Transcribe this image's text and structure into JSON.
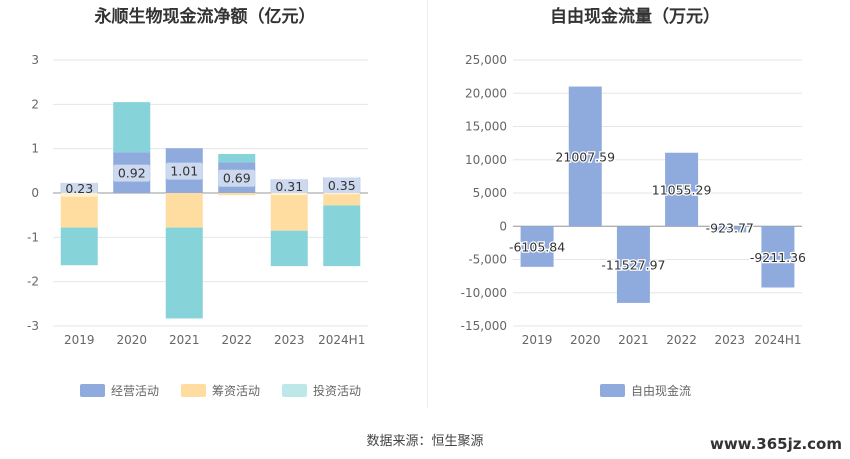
{
  "chart_data": [
    {
      "type": "bar",
      "stacked": true,
      "title": "永顺生物现金流净额（亿元）",
      "categories": [
        "2019",
        "2020",
        "2021",
        "2022",
        "2023",
        "2024H1"
      ],
      "y_ticks": [
        "3",
        "2",
        "1",
        "0",
        "-1",
        "-2",
        "-3"
      ],
      "ylim": [
        -3,
        3
      ],
      "series": [
        {
          "name": "经营活动",
          "color": "#8FAADC",
          "values": [
            0.23,
            0.92,
            1.01,
            0.69,
            0.31,
            0.35
          ],
          "labels": [
            "0.23",
            "0.92",
            "1.01",
            "0.69",
            "0.31",
            "0.35"
          ]
        },
        {
          "name": "筹资活动",
          "color": "#FFDDA0",
          "values": [
            -0.78,
            0.0,
            -0.78,
            -0.05,
            -0.85,
            -0.28
          ]
        },
        {
          "name": "投资活动",
          "color": "#86D4D9",
          "values": [
            -0.85,
            1.13,
            -2.05,
            0.19,
            -0.8,
            -1.37
          ]
        }
      ],
      "legend_position": "bottom",
      "grid": true
    },
    {
      "type": "bar",
      "title": "自由现金流量（万元）",
      "categories": [
        "2019",
        "2020",
        "2021",
        "2022",
        "2023",
        "2024H1"
      ],
      "y_ticks": [
        "25,000",
        "20,000",
        "15,000",
        "10,000",
        "5,000",
        "0",
        "-5,000",
        "-10,000",
        "-15,000"
      ],
      "ylim": [
        -15000,
        25000
      ],
      "series": [
        {
          "name": "自由现金流",
          "color": "#8FAADC",
          "values": [
            -6105.84,
            21007.59,
            -11527.97,
            11055.29,
            -923.77,
            -9211.36
          ],
          "labels": [
            "-6105.84",
            "21007.59",
            "-11527.97",
            "11055.29",
            "-923.77",
            "-9211.36"
          ]
        }
      ],
      "legend_position": "bottom",
      "grid": true
    }
  ],
  "footer": {
    "source": "数据来源：恒生聚源",
    "watermark": "www.365jz.com"
  }
}
